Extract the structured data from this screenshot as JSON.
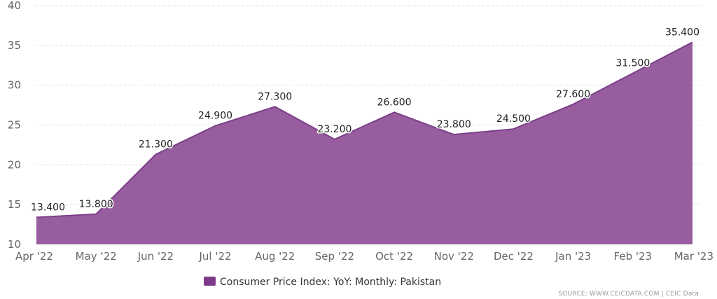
{
  "chart_data": {
    "type": "area",
    "categories": [
      "Apr '22",
      "May '22",
      "Jun '22",
      "Jul '22",
      "Aug '22",
      "Sep '22",
      "Oct '22",
      "Nov '22",
      "Dec '22",
      "Jan '23",
      "Feb '23",
      "Mar '23"
    ],
    "series": [
      {
        "name": "Consumer Price Index: YoY: Monthly: Pakistan",
        "values": [
          13.4,
          13.8,
          21.3,
          24.9,
          27.3,
          23.2,
          26.6,
          23.8,
          24.5,
          27.6,
          31.5,
          35.4
        ],
        "value_labels": [
          "13.400",
          "13.800",
          "21.300",
          "24.900",
          "27.300",
          "23.200",
          "26.600",
          "23.800",
          "24.500",
          "27.600",
          "31.500",
          "35.400"
        ],
        "color": "#8e4b9c"
      }
    ],
    "yticks": [
      "10",
      "15",
      "20",
      "25",
      "30",
      "35",
      "40"
    ],
    "ylim": [
      10,
      40
    ],
    "grid": true,
    "legend_position": "bottom-center"
  },
  "source": "SOURCE: WWW.CEICDATA.COM | CEIC Data",
  "colors": {
    "area_fill": "#975d9f",
    "area_line": "#7b3f88",
    "legend_swatch": "#7e3a8a",
    "grid": "#dddddd",
    "axis_text": "#666666"
  }
}
